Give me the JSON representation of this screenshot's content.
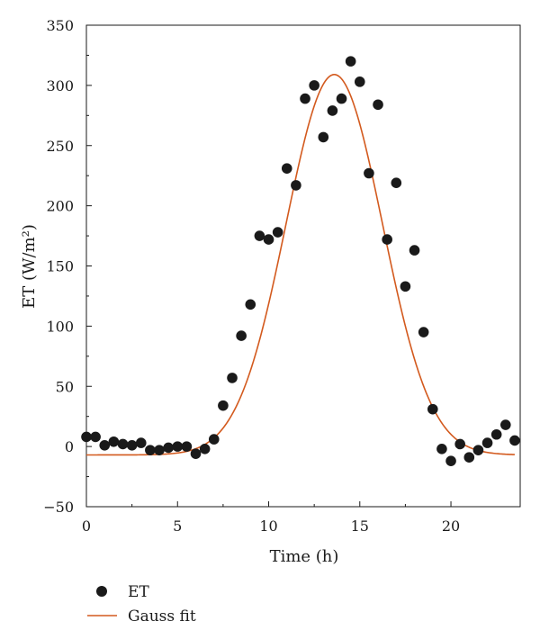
{
  "chart_data": {
    "type": "scatter",
    "title": "",
    "xlabel": "Time (h)",
    "ylabel": "ET (W/m²)",
    "xlim": [
      0,
      23.8
    ],
    "ylim": [
      -50,
      350
    ],
    "x_ticks": [
      0,
      5,
      10,
      15,
      20
    ],
    "y_ticks": [
      -50,
      0,
      50,
      100,
      150,
      200,
      250,
      300,
      350
    ],
    "x_tick_labels": [
      "0",
      "5",
      "10",
      "15",
      "20"
    ],
    "y_tick_labels": [
      "−50",
      "0",
      "50",
      "100",
      "150",
      "200",
      "250",
      "300",
      "350"
    ],
    "grid": false,
    "legend_position": "bottom-left, below plot",
    "series": [
      {
        "name": "ET",
        "kind": "scatter",
        "color": "#1a1a1a",
        "x": [
          0,
          0.5,
          1,
          1.5,
          2,
          2.5,
          3,
          3.5,
          4,
          4.5,
          5,
          5.5,
          6,
          6.5,
          7,
          7.5,
          8,
          8.5,
          9,
          9.5,
          10,
          10.5,
          11,
          11.5,
          12,
          12.5,
          13,
          13.5,
          14,
          14.5,
          15,
          15.5,
          16,
          16.5,
          17,
          17.5,
          18,
          18.5,
          19,
          19.5,
          20,
          20.5,
          21,
          21.5,
          22,
          22.5,
          23,
          23.5
        ],
        "y": [
          8,
          8,
          1,
          4,
          2,
          1,
          3,
          -3,
          -3,
          -1,
          0,
          0,
          -6,
          -2,
          6,
          34,
          57,
          92,
          118,
          175,
          172,
          178,
          231,
          217,
          289,
          300,
          257,
          279,
          289,
          320,
          303,
          227,
          284,
          172,
          219,
          133,
          163,
          95,
          31,
          -2,
          -12,
          2,
          -9,
          -3,
          3,
          10,
          18,
          5
        ]
      },
      {
        "name": "Gauss fit",
        "kind": "line",
        "color": "#d35a1e",
        "model": "gaussian",
        "baseline": -7,
        "amplitude": 316,
        "center": 13.6,
        "sigma": 2.65,
        "x_range": [
          0,
          23.5
        ]
      }
    ]
  }
}
